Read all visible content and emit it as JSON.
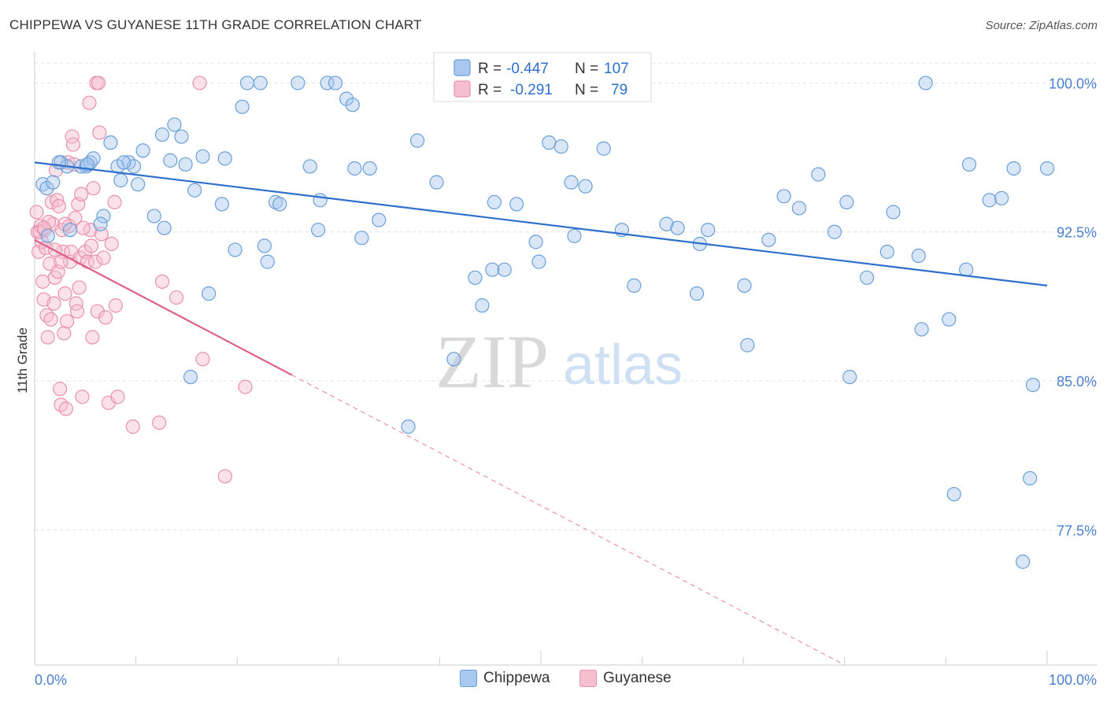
{
  "title": "CHIPPEWA VS GUYANESE 11TH GRADE CORRELATION CHART",
  "source": "Source: ZipAtlas.com",
  "watermark": {
    "zip": "ZIP",
    "atlas": "atlas"
  },
  "colors": {
    "blue_fill": "#a8c8f0",
    "blue_stroke": "#6a9fd8",
    "blue_line": "#2e6fce",
    "pink_fill": "#f6bfd0",
    "pink_stroke": "#e890ae",
    "pink_line": "#e0608a",
    "axis_label": "#4a7fd0",
    "grid": "#e0e0e0"
  },
  "legend": {
    "rows": [
      {
        "series": "Chippewa",
        "r_label": "R =",
        "r_value": "-0.447",
        "n_label": "N =",
        "n_value": "107"
      },
      {
        "series": "Guyanese",
        "r_label": "R =",
        "r_value": "-0.291",
        "n_label": "N =",
        "n_value": "79"
      }
    ]
  },
  "chart_data": {
    "type": "scatter",
    "title": "CHIPPEWA VS GUYANESE 11TH GRADE CORRELATION CHART",
    "xlabel": "",
    "ylabel": "11th Grade",
    "xlim": [
      0,
      100
    ],
    "ylim": [
      70.7,
      101.8
    ],
    "x_tick_labels": [
      "0.0%",
      "100.0%"
    ],
    "y_ticks": [
      77.5,
      85.0,
      92.5,
      100.0
    ],
    "y_tick_labels": [
      "77.5%",
      "85.0%",
      "92.5%",
      "100.0%"
    ],
    "grid": true,
    "legend_position": "top-center",
    "series": [
      {
        "name": "Chippewa",
        "color": "#6a9fd8",
        "trend": {
          "x": [
            0,
            100
          ],
          "y": [
            96.0,
            89.8
          ]
        },
        "points": [
          [
            0.8,
            94.9
          ],
          [
            1.2,
            94.7
          ],
          [
            1.8,
            95.0
          ],
          [
            2.6,
            96.0
          ],
          [
            3.2,
            95.8
          ],
          [
            3.5,
            92.6
          ],
          [
            4.6,
            95.8
          ],
          [
            5.1,
            95.8
          ],
          [
            5.5,
            96.0
          ],
          [
            5.8,
            96.2
          ],
          [
            6.8,
            93.3
          ],
          [
            6.5,
            92.9
          ],
          [
            7.5,
            97.0
          ],
          [
            8.2,
            95.8
          ],
          [
            8.5,
            95.1
          ],
          [
            9.3,
            96.0
          ],
          [
            9.8,
            95.8
          ],
          [
            10.2,
            94.9
          ],
          [
            10.7,
            96.6
          ],
          [
            11.8,
            93.3
          ],
          [
            12.8,
            92.7
          ],
          [
            12.6,
            97.4
          ],
          [
            13.4,
            96.1
          ],
          [
            13.8,
            97.9
          ],
          [
            14.5,
            97.3
          ],
          [
            14.9,
            95.9
          ],
          [
            15.4,
            85.2
          ],
          [
            15.8,
            94.6
          ],
          [
            16.6,
            96.3
          ],
          [
            17.2,
            89.4
          ],
          [
            18.5,
            93.9
          ],
          [
            18.8,
            96.2
          ],
          [
            19.8,
            91.6
          ],
          [
            20.5,
            98.8
          ],
          [
            21.0,
            100.0
          ],
          [
            22.3,
            100.0
          ],
          [
            22.7,
            91.8
          ],
          [
            23.0,
            91.0
          ],
          [
            23.8,
            94.0
          ],
          [
            24.2,
            93.9
          ],
          [
            26.0,
            100.0
          ],
          [
            27.2,
            95.8
          ],
          [
            28.0,
            92.6
          ],
          [
            28.2,
            94.1
          ],
          [
            28.9,
            100.0
          ],
          [
            29.7,
            100.0
          ],
          [
            30.8,
            99.2
          ],
          [
            31.4,
            98.9
          ],
          [
            31.6,
            95.7
          ],
          [
            32.3,
            92.2
          ],
          [
            33.1,
            95.7
          ],
          [
            34.0,
            93.1
          ],
          [
            36.9,
            82.7
          ],
          [
            37.8,
            97.1
          ],
          [
            39.7,
            95.0
          ],
          [
            41.4,
            86.1
          ],
          [
            43.5,
            90.2
          ],
          [
            44.2,
            88.8
          ],
          [
            45.2,
            90.6
          ],
          [
            45.4,
            94.0
          ],
          [
            46.4,
            90.6
          ],
          [
            47.6,
            93.9
          ],
          [
            49.5,
            92.0
          ],
          [
            49.8,
            91.0
          ],
          [
            50.8,
            97.0
          ],
          [
            52.0,
            96.8
          ],
          [
            53.0,
            95.0
          ],
          [
            53.3,
            92.3
          ],
          [
            54.4,
            94.8
          ],
          [
            56.2,
            96.7
          ],
          [
            58.0,
            92.6
          ],
          [
            59.2,
            89.8
          ],
          [
            62.4,
            92.9
          ],
          [
            63.5,
            92.7
          ],
          [
            65.4,
            89.4
          ],
          [
            65.7,
            91.9
          ],
          [
            66.5,
            92.6
          ],
          [
            70.1,
            89.8
          ],
          [
            70.4,
            86.8
          ],
          [
            72.5,
            92.1
          ],
          [
            74.0,
            94.3
          ],
          [
            75.5,
            93.7
          ],
          [
            77.4,
            95.4
          ],
          [
            79.0,
            92.5
          ],
          [
            80.2,
            94.0
          ],
          [
            80.5,
            85.2
          ],
          [
            82.2,
            90.2
          ],
          [
            84.2,
            91.5
          ],
          [
            84.8,
            93.5
          ],
          [
            87.3,
            91.3
          ],
          [
            87.6,
            87.6
          ],
          [
            88.0,
            100.0
          ],
          [
            90.3,
            88.1
          ],
          [
            90.8,
            79.3
          ],
          [
            92.0,
            90.6
          ],
          [
            92.3,
            95.9
          ],
          [
            94.3,
            94.1
          ],
          [
            95.5,
            94.2
          ],
          [
            96.7,
            95.7
          ],
          [
            97.6,
            75.9
          ],
          [
            98.3,
            80.1
          ],
          [
            98.6,
            84.8
          ],
          [
            100.0,
            95.7
          ],
          [
            1.3,
            92.3
          ],
          [
            2.4,
            96.0
          ],
          [
            5.2,
            95.9
          ],
          [
            8.8,
            96.0
          ]
        ]
      },
      {
        "name": "Guyanese",
        "color": "#e890ae",
        "trend": {
          "x": [
            0,
            25.4
          ],
          "y": [
            92.1,
            85.3
          ]
        },
        "trend_dashed": {
          "x": [
            25.4,
            80.0
          ],
          "y": [
            85.3,
            70.7
          ]
        },
        "points": [
          [
            0.2,
            93.5
          ],
          [
            0.3,
            92.5
          ],
          [
            0.4,
            91.5
          ],
          [
            0.6,
            92.8
          ],
          [
            0.7,
            92.0
          ],
          [
            0.8,
            90.0
          ],
          [
            0.9,
            89.1
          ],
          [
            1.1,
            91.7
          ],
          [
            1.2,
            88.3
          ],
          [
            1.3,
            87.2
          ],
          [
            1.5,
            90.9
          ],
          [
            1.6,
            88.1
          ],
          [
            1.7,
            94.0
          ],
          [
            1.8,
            92.9
          ],
          [
            1.9,
            88.9
          ],
          [
            2.0,
            90.2
          ],
          [
            2.1,
            95.6
          ],
          [
            2.2,
            94.1
          ],
          [
            2.3,
            90.5
          ],
          [
            2.4,
            93.8
          ],
          [
            2.5,
            84.6
          ],
          [
            2.6,
            83.8
          ],
          [
            2.7,
            92.6
          ],
          [
            2.8,
            91.5
          ],
          [
            2.9,
            87.4
          ],
          [
            3.0,
            89.4
          ],
          [
            3.1,
            83.6
          ],
          [
            3.3,
            96.0
          ],
          [
            3.4,
            92.8
          ],
          [
            3.5,
            91.0
          ],
          [
            3.6,
            91.5
          ],
          [
            3.7,
            97.3
          ],
          [
            3.8,
            96.9
          ],
          [
            3.9,
            95.9
          ],
          [
            4.0,
            93.2
          ],
          [
            4.1,
            88.9
          ],
          [
            4.2,
            88.5
          ],
          [
            4.3,
            93.9
          ],
          [
            4.4,
            89.7
          ],
          [
            4.5,
            91.2
          ],
          [
            4.6,
            94.4
          ],
          [
            4.7,
            84.2
          ],
          [
            5.0,
            91.5
          ],
          [
            5.2,
            91.0
          ],
          [
            5.4,
            99.0
          ],
          [
            5.5,
            92.6
          ],
          [
            5.6,
            91.8
          ],
          [
            5.7,
            87.2
          ],
          [
            5.8,
            94.7
          ],
          [
            6.0,
            91.0
          ],
          [
            6.2,
            88.5
          ],
          [
            6.4,
            97.5
          ],
          [
            6.6,
            92.4
          ],
          [
            6.8,
            91.2
          ],
          [
            7.0,
            88.2
          ],
          [
            7.3,
            83.9
          ],
          [
            7.6,
            91.9
          ],
          [
            7.9,
            94.0
          ],
          [
            8.0,
            88.8
          ],
          [
            8.2,
            84.2
          ],
          [
            9.7,
            82.7
          ],
          [
            12.3,
            82.9
          ],
          [
            12.6,
            90.0
          ],
          [
            14.0,
            89.2
          ],
          [
            16.6,
            86.1
          ],
          [
            18.8,
            80.2
          ],
          [
            20.8,
            84.7
          ],
          [
            0.5,
            92.5
          ],
          [
            1.0,
            92.6
          ],
          [
            1.4,
            93.0
          ],
          [
            2.6,
            91.0
          ],
          [
            3.2,
            88.0
          ],
          [
            4.8,
            92.7
          ],
          [
            6.1,
            100.0
          ],
          [
            6.3,
            100.0
          ],
          [
            16.3,
            100.0
          ],
          [
            0.9,
            92.7
          ],
          [
            2.0,
            91.6
          ],
          [
            3.0,
            92.9
          ]
        ]
      }
    ]
  }
}
